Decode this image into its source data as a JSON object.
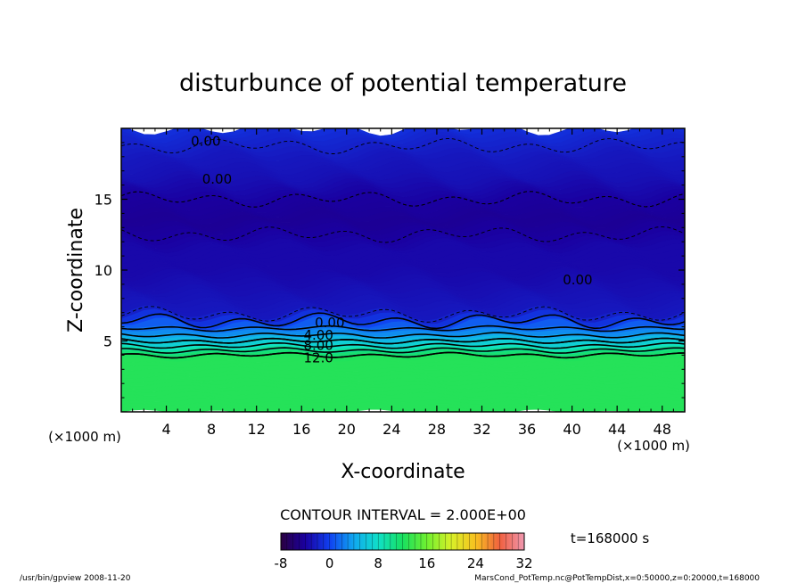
{
  "chart_data": {
    "type": "heatmap",
    "title": "disturbunce of potential temperature",
    "xlabel": "X-coordinate",
    "ylabel": "Z-coordinate",
    "x_unit": "(×1000 m)",
    "y_unit": "(×1000 m)",
    "xlim": [
      0,
      50
    ],
    "ylim": [
      0,
      20
    ],
    "x_ticks": [
      4,
      8,
      12,
      16,
      20,
      24,
      28,
      32,
      36,
      40,
      44,
      48
    ],
    "y_ticks": [
      5,
      10,
      15
    ],
    "contour_interval_text": "CONTOUR INTERVAL = 2.000E+00",
    "contour_labels": [
      "0.00",
      "0.00",
      "0.00",
      "0.00",
      "4.00",
      "8.00",
      "12.0"
    ],
    "colorbar": {
      "min": -8,
      "max": 32,
      "ticks": [
        -8,
        0,
        8,
        16,
        24,
        32
      ]
    },
    "z_profile": [
      {
        "z": 0.0,
        "value": 12.6
      },
      {
        "z": 3.8,
        "value": 12.6
      },
      {
        "z": 4.0,
        "value": 12.0
      },
      {
        "z": 4.5,
        "value": 9.0
      },
      {
        "z": 5.0,
        "value": 6.0
      },
      {
        "z": 5.6,
        "value": 3.0
      },
      {
        "z": 6.3,
        "value": 0.5
      },
      {
        "z": 7.0,
        "value": -2.5
      },
      {
        "z": 8.5,
        "value": -3.0
      },
      {
        "z": 10.0,
        "value": -3.5
      },
      {
        "z": 11.5,
        "value": -3.5
      },
      {
        "z": 13.5,
        "value": -4.5
      },
      {
        "z": 15.0,
        "value": -4.0
      },
      {
        "z": 16.5,
        "value": -3.0
      },
      {
        "z": 18.0,
        "value": -2.5
      },
      {
        "z": 19.5,
        "value": -1.5
      },
      {
        "z": 20.0,
        "value": -1.0
      }
    ],
    "time_label": "t=168000 s"
  },
  "footer": {
    "left": "/usr/bin/gpview  2008-11-20",
    "right": "MarsCond_PotTemp.nc@PotTempDist,x=0:50000,z=0:20000,t=168000"
  }
}
